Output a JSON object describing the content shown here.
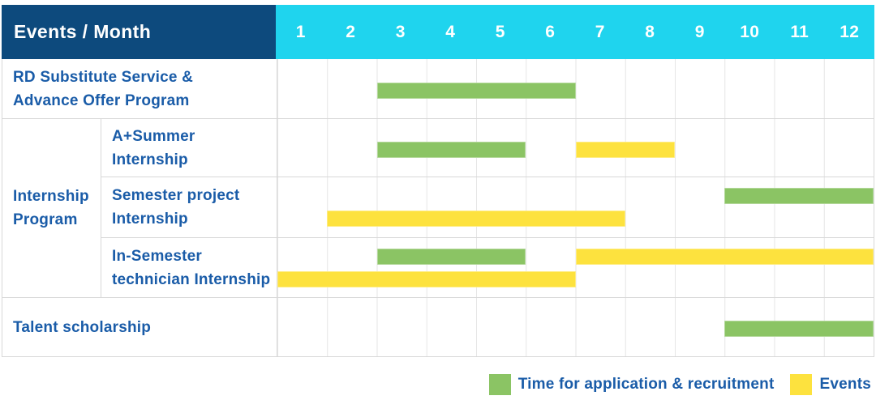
{
  "colors": {
    "header_navy": "#0D4A7D",
    "header_cyan": "#1FD4EE",
    "bar_green": "#8BC464",
    "bar_yellow": "#FDE23E",
    "label_blue": "#1A5CA8",
    "grid_border": "#D8D8D8"
  },
  "header": {
    "title": "Events / Month",
    "months": [
      "1",
      "2",
      "3",
      "4",
      "5",
      "6",
      "7",
      "8",
      "9",
      "10",
      "11",
      "12"
    ]
  },
  "labels": {
    "rd": [
      "RD Substitute Service &",
      "Advance Offer Program"
    ],
    "group": [
      "Internship",
      "Program"
    ],
    "a_summer": [
      "A+Summer",
      "Internship"
    ],
    "semester": [
      "Semester project",
      "Internship"
    ],
    "in_semester": [
      "In-Semester",
      "technician Internship"
    ],
    "talent": [
      "Talent scholarship"
    ]
  },
  "chart_data": {
    "type": "gantt",
    "title": "Events / Month",
    "x_axis": {
      "label": "Month",
      "ticks": [
        "1",
        "2",
        "3",
        "4",
        "5",
        "6",
        "7",
        "8",
        "9",
        "10",
        "11",
        "12"
      ],
      "range": [
        1,
        12
      ]
    },
    "legend": [
      {
        "name": "Time for application & recruitment",
        "color": "#8BC464"
      },
      {
        "name": "Events",
        "color": "#FDE23E"
      }
    ],
    "rows": [
      {
        "event": "RD Substitute Service & Advance Offer Program",
        "group": null,
        "bars": [
          {
            "series": "Time for application & recruitment",
            "start_month": 3,
            "end_month": 6,
            "lane": "single"
          }
        ]
      },
      {
        "event": "A+Summer Internship",
        "group": "Internship Program",
        "bars": [
          {
            "series": "Time for application & recruitment",
            "start_month": 3,
            "end_month": 5,
            "lane": "single"
          },
          {
            "series": "Events",
            "start_month": 7,
            "end_month": 8,
            "lane": "single"
          }
        ]
      },
      {
        "event": "Semester project Internship",
        "group": "Internship Program",
        "bars": [
          {
            "series": "Time for application & recruitment",
            "start_month": 10,
            "end_month": 12,
            "lane": "upper"
          },
          {
            "series": "Events",
            "start_month": 2,
            "end_month": 7,
            "lane": "lower"
          }
        ]
      },
      {
        "event": "In-Semester technician Internship",
        "group": "Internship Program",
        "bars": [
          {
            "series": "Time for application & recruitment",
            "start_month": 3,
            "end_month": 5,
            "lane": "upper"
          },
          {
            "series": "Events",
            "start_month": 7,
            "end_month": 12,
            "lane": "upper"
          },
          {
            "series": "Events",
            "start_month": 1,
            "end_month": 6,
            "lane": "lower"
          }
        ]
      },
      {
        "event": "Talent scholarship",
        "group": null,
        "bars": [
          {
            "series": "Time for application & recruitment",
            "start_month": 10,
            "end_month": 12,
            "lane": "single"
          }
        ]
      }
    ]
  }
}
